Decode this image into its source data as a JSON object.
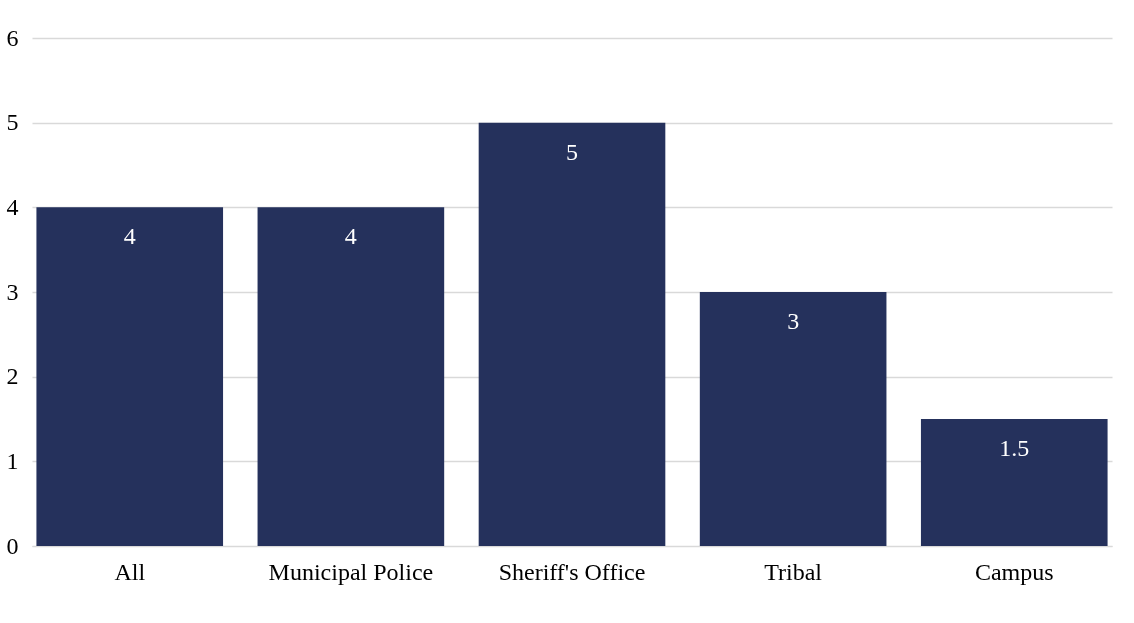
{
  "chart_data": {
    "type": "bar",
    "categories": [
      "All",
      "Municipal Police",
      "Sheriff's Office",
      "Tribal",
      "Campus"
    ],
    "values": [
      4,
      4,
      5,
      3,
      1.5
    ],
    "color": "#25315c",
    "ylim": [
      0,
      6
    ],
    "yticks": [
      0,
      1,
      2,
      3,
      4,
      5,
      6
    ],
    "grid": "y",
    "data_labels": true
  }
}
